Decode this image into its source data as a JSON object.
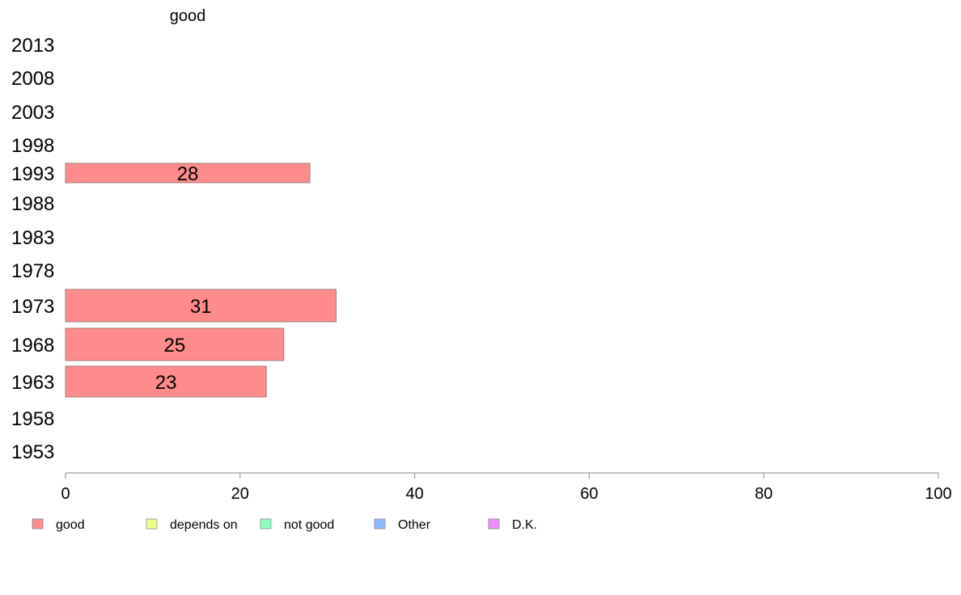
{
  "chart_data": {
    "type": "bar",
    "orientation": "horizontal",
    "title": "good",
    "xlabel": "",
    "ylabel": "",
    "xlim": [
      0,
      100
    ],
    "xticks": [
      "0",
      "20",
      "40",
      "60",
      "80",
      "100"
    ],
    "categories": [
      "2013",
      "2008",
      "2003",
      "1998",
      "1993",
      "1988",
      "1983",
      "1978",
      "1973",
      "1968",
      "1963",
      "1958",
      "1953"
    ],
    "series": [
      {
        "name": "good",
        "color": "#ff8c8c",
        "values": [
          null,
          null,
          null,
          null,
          28,
          null,
          null,
          null,
          31,
          25,
          23,
          null,
          null
        ]
      }
    ],
    "data_labels": [
      "",
      "",
      "",
      "",
      "28",
      "",
      "",
      "",
      "31",
      "25",
      "23",
      "",
      ""
    ],
    "legend": {
      "position": "bottom-left",
      "items": [
        {
          "label": "good",
          "color": "#ff8c8c"
        },
        {
          "label": "depends on",
          "color": "#eeff8c"
        },
        {
          "label": "not good",
          "color": "#8cffc0"
        },
        {
          "label": "Other",
          "color": "#8cbaff"
        },
        {
          "label": "D.K.",
          "color": "#f08cff"
        }
      ]
    },
    "grid": false
  }
}
